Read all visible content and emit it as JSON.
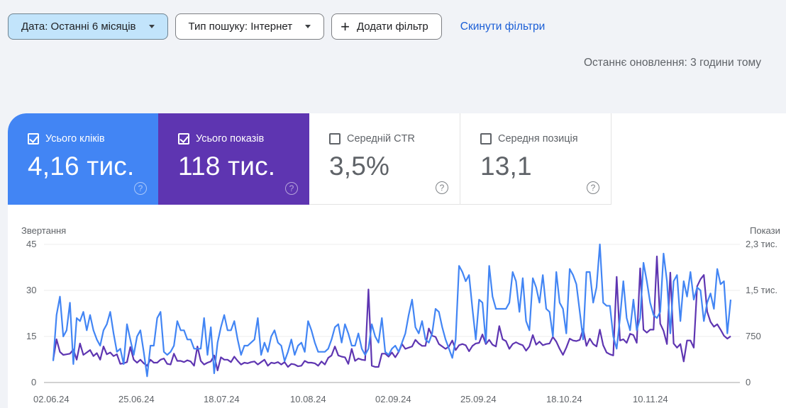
{
  "filters": {
    "date_chip": "Дата: Останні 6 місяців",
    "search_type_chip": "Тип пошуку: Інтернет",
    "add_filter": "Додати фільтр",
    "add_filter_icon": "plus-icon",
    "reset_filters": "Скинути фільтри"
  },
  "last_update": "Останнє оновлення: 3 години тому",
  "metrics": [
    {
      "label": "Усього кліків",
      "value": "4,16 тис.",
      "checked": true,
      "color": "#4285f4"
    },
    {
      "label": "Усього показів",
      "value": "118 тис.",
      "checked": true,
      "color": "#5e35b1"
    },
    {
      "label": "Середній CTR",
      "value": "3,5%",
      "checked": false
    },
    {
      "label": "Середня позиція",
      "value": "13,1",
      "checked": false
    }
  ],
  "help_icon": "?",
  "chart_data": {
    "type": "line",
    "left_axis": {
      "title": "Звертання",
      "ticks": [
        "45",
        "30",
        "15",
        "0"
      ],
      "ylim": [
        0,
        45
      ]
    },
    "right_axis": {
      "title": "Покази",
      "ticks": [
        "2,3 тис.",
        "1,5 тис.",
        "750",
        "0"
      ],
      "ylim": [
        0,
        2300
      ]
    },
    "x_ticks": [
      "02.06.24",
      "25.06.24",
      "18.07.24",
      "10.08.24",
      "02.09.24",
      "25.09.24",
      "18.10.24",
      "10.11.24"
    ],
    "grid": true,
    "series": [
      {
        "name": "Усього кліків",
        "axis": "left",
        "color": "#4285f4",
        "values": [
          7,
          22,
          28,
          15,
          17,
          26,
          6,
          21,
          20,
          23,
          17,
          22,
          17,
          14,
          12,
          17,
          19,
          23,
          16,
          10,
          11,
          6,
          19,
          14,
          9,
          15,
          17,
          10,
          2,
          12,
          12,
          21,
          23,
          10,
          9,
          10,
          12,
          20,
          17,
          17,
          14,
          14,
          11,
          11,
          11,
          21,
          9,
          18,
          3,
          13,
          18,
          22,
          17,
          17,
          20,
          14,
          9,
          12,
          12,
          13,
          14,
          21,
          9,
          13,
          10,
          15,
          17,
          13,
          12,
          7,
          10,
          14,
          9,
          12,
          13,
          10,
          20,
          17,
          13,
          10,
          10,
          10,
          11,
          14,
          18,
          19,
          13,
          19,
          16,
          12,
          12,
          16,
          11,
          9,
          11,
          19,
          15,
          13,
          21,
          10,
          9,
          11,
          12,
          10,
          13,
          16,
          22,
          27,
          18,
          16,
          20,
          14,
          13,
          16,
          24,
          23,
          18,
          14,
          11,
          8,
          14,
          38,
          36,
          33,
          35,
          24,
          14,
          27,
          26,
          13,
          38,
          28,
          24,
          24,
          24,
          24,
          26,
          36,
          33,
          23,
          34,
          20,
          17,
          34,
          31,
          26,
          35,
          24,
          23,
          15,
          36,
          26,
          24,
          16,
          37,
          35,
          32,
          23,
          14,
          36,
          36,
          26,
          31,
          45,
          26,
          25,
          25,
          15,
          11,
          21,
          33,
          21,
          17,
          27,
          17,
          21,
          39,
          33,
          26,
          22,
          21,
          23,
          42,
          33,
          16,
          33,
          35,
          20,
          33,
          28,
          36,
          27,
          31,
          30,
          20,
          26,
          29,
          24,
          37,
          32,
          33,
          16,
          27
        ]
      },
      {
        "name": "Усього показів",
        "axis": "right",
        "color": "#5e35b1",
        "values": [
          380,
          720,
          510,
          460,
          470,
          480,
          550,
          380,
          650,
          460,
          500,
          540,
          440,
          490,
          380,
          600,
          470,
          500,
          440,
          470,
          310,
          320,
          340,
          590,
          380,
          330,
          380,
          320,
          280,
          380,
          330,
          330,
          380,
          400,
          310,
          300,
          480,
          360,
          360,
          340,
          370,
          350,
          280,
          600,
          360,
          300,
          330,
          350,
          450,
          200,
          420,
          380,
          380,
          340,
          430,
          360,
          300,
          330,
          320,
          340,
          350,
          300,
          340,
          380,
          280,
          330,
          320,
          340,
          300,
          340,
          260,
          310,
          300,
          270,
          280,
          360,
          330,
          330,
          320,
          280,
          350,
          300,
          410,
          450,
          600,
          450,
          430,
          420,
          310,
          560,
          360,
          400,
          380,
          370,
          1550,
          280,
          260,
          260,
          480,
          480,
          430,
          500,
          420,
          510,
          640,
          560,
          580,
          600,
          710,
          650,
          610,
          610,
          900,
          780,
          760,
          640,
          600,
          560,
          600,
          700,
          540,
          620,
          640,
          620,
          520,
          610,
          650,
          660,
          800,
          640,
          710,
          630,
          600,
          940,
          720,
          690,
          560,
          640,
          670,
          640,
          620,
          530,
          600,
          790,
          630,
          680,
          620,
          640,
          650,
          760,
          680,
          560,
          460,
          580,
          730,
          700,
          690,
          710,
          890,
          610,
          730,
          640,
          600,
          880,
          620,
          500,
          470,
          450,
          1760,
          700,
          720,
          660,
          810,
          790,
          660,
          1900,
          880,
          830,
          880,
          880,
          2100,
          980,
          860,
          640,
          1830,
          650,
          580,
          640,
          350,
          700,
          700,
          580,
          1600,
          1720,
          1790,
          1180,
          1010,
          930,
          970,
          880,
          780,
          730,
          770
        ]
      }
    ]
  }
}
